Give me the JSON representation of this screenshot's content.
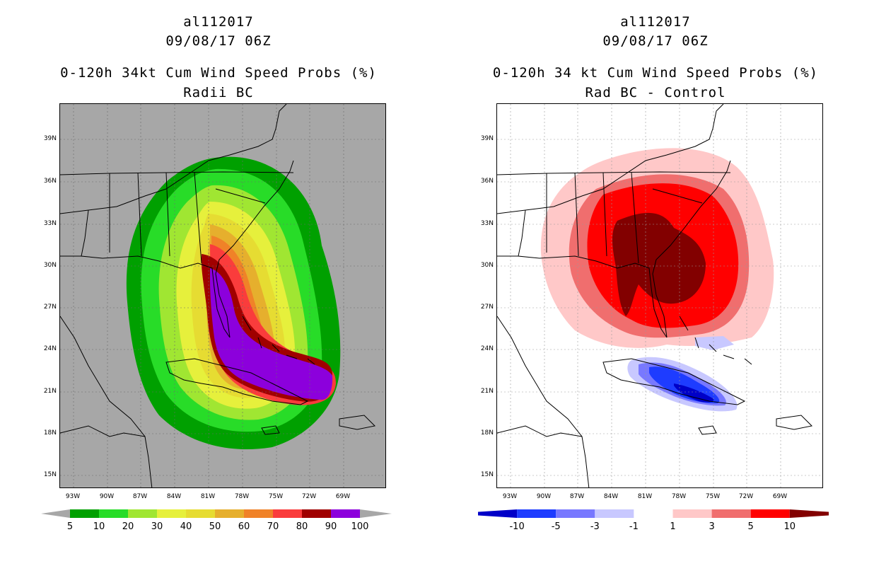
{
  "left": {
    "storm_id": "al112017",
    "datetime": "09/08/17 06Z",
    "title": "0-120h 34kt Cum Wind Speed Probs (%)",
    "subtitle": "Radii BC",
    "background_color": "#a7a7a7",
    "colorbar": {
      "colors": [
        "#00a000",
        "#28dc28",
        "#a0e632",
        "#e6f03c",
        "#e6dc32",
        "#e6af2d",
        "#f08228",
        "#fa3c3c",
        "#a00000",
        "#8c00dc"
      ],
      "labels": [
        "5",
        "10",
        "20",
        "30",
        "40",
        "50",
        "60",
        "70",
        "80",
        "90",
        "100"
      ]
    }
  },
  "right": {
    "storm_id": "al112017",
    "datetime": "09/08/17 06Z",
    "title": "0-120h 34 kt Cum Wind Speed Probs (%)",
    "subtitle": "Rad BC - Control",
    "background_color": "#ffffff",
    "colorbar": {
      "colors": [
        "#0000c8",
        "#1e3cff",
        "#7878ff",
        "#c8c8ff",
        "#ffffff",
        "#ffc8c8",
        "#f06e6e",
        "#ff0000",
        "#820000"
      ],
      "labels": [
        "-10",
        "-5",
        "-3",
        "-1",
        "1",
        "3",
        "5",
        "10"
      ]
    }
  },
  "axes": {
    "lat_ticks": [
      "39N",
      "36N",
      "33N",
      "30N",
      "27N",
      "24N",
      "21N",
      "18N",
      "15N"
    ],
    "lon_ticks": [
      "93W",
      "90W",
      "87W",
      "84W",
      "81W",
      "78W",
      "75W",
      "72W",
      "69W"
    ],
    "lat_range": [
      14,
      41.5
    ],
    "lon_range": [
      95,
      66
    ]
  }
}
